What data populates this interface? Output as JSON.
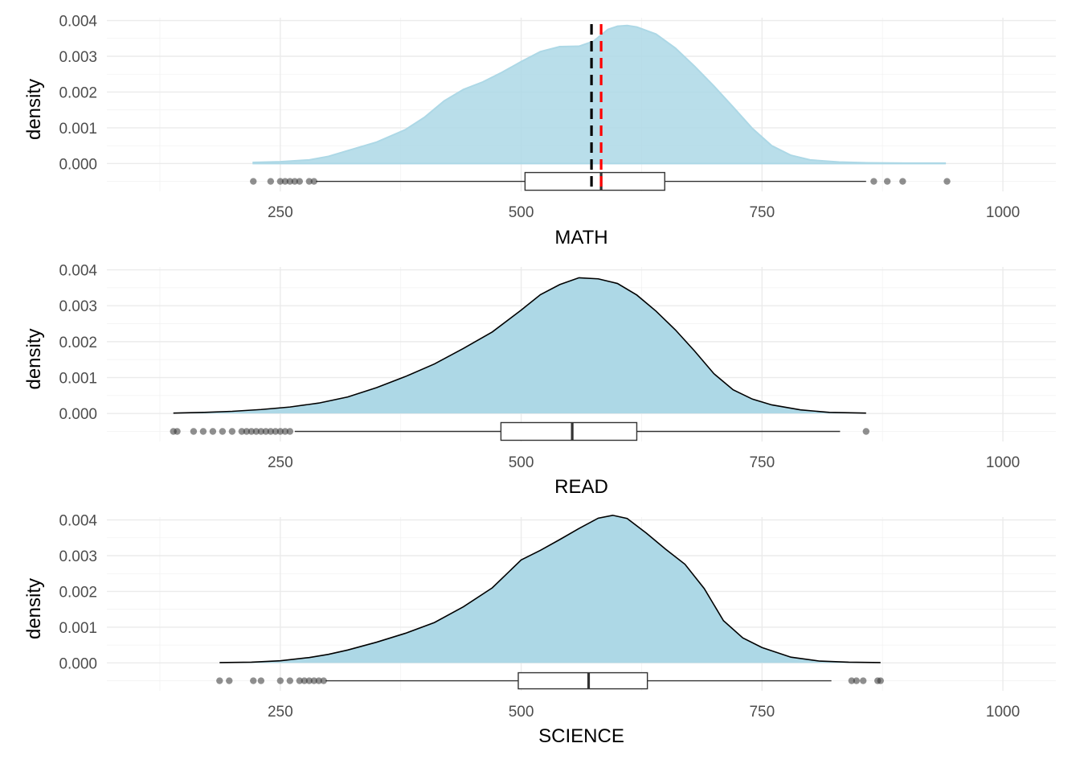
{
  "chart_data": [
    {
      "type": "density",
      "variable": "MATH",
      "xlabel": "MATH",
      "ylabel": "density",
      "xlim": [
        70,
        1055
      ],
      "ylim": [
        -0.00078,
        0.00408
      ],
      "x_ticks": [
        250,
        500,
        750,
        1000
      ],
      "x_tick_labels": [
        "250",
        "500",
        "750",
        "1000"
      ],
      "y_ticks": [
        0.0,
        0.001,
        0.002,
        0.003,
        0.004
      ],
      "y_tick_labels": [
        "0.000",
        "0.001",
        "0.002",
        "0.003",
        "0.004"
      ],
      "density_fill_color": "#add8e6",
      "density_outline": "none",
      "density": {
        "x": [
          222,
          250,
          280,
          300,
          320,
          350,
          380,
          400,
          420,
          440,
          460,
          480,
          500,
          520,
          540,
          560,
          575,
          590,
          600,
          610,
          620,
          640,
          660,
          680,
          700,
          720,
          740,
          760,
          780,
          800,
          830,
          860,
          900,
          940
        ],
        "y": [
          3e-05,
          5e-05,
          0.0001,
          0.0002,
          0.00036,
          0.0006,
          0.00095,
          0.0013,
          0.00175,
          0.00207,
          0.00228,
          0.00255,
          0.00285,
          0.00313,
          0.00327,
          0.00328,
          0.00342,
          0.00375,
          0.00384,
          0.00386,
          0.00382,
          0.00362,
          0.00323,
          0.00272,
          0.00217,
          0.00158,
          0.00098,
          0.0005,
          0.00023,
          0.0001,
          4e-05,
          2e-05,
          1e-05,
          1e-05
        ]
      },
      "boxplot": {
        "min": 287,
        "q1": 504,
        "median": 583,
        "q3": 649,
        "max": 858
      },
      "outliers": [
        222,
        240,
        250,
        255,
        260,
        265,
        270,
        280,
        285,
        866,
        880,
        896,
        942
      ],
      "reference_lines": [
        {
          "value": 573,
          "color": "#000000",
          "style": "dashed"
        },
        {
          "value": 583,
          "color": "#ff0000",
          "style": "dashed"
        }
      ]
    },
    {
      "type": "density",
      "variable": "READ",
      "xlabel": "READ",
      "ylabel": "density",
      "xlim": [
        70,
        1055
      ],
      "ylim": [
        -0.00078,
        0.00408
      ],
      "x_ticks": [
        250,
        500,
        750,
        1000
      ],
      "x_tick_labels": [
        "250",
        "500",
        "750",
        "1000"
      ],
      "y_ticks": [
        0.0,
        0.001,
        0.002,
        0.003,
        0.004
      ],
      "y_tick_labels": [
        "0.000",
        "0.001",
        "0.002",
        "0.003",
        "0.004"
      ],
      "density_fill_color": "#add8e6",
      "density_outline": "#000000",
      "density": {
        "x": [
          139,
          170,
          200,
          230,
          260,
          290,
          320,
          350,
          380,
          410,
          440,
          470,
          500,
          520,
          540,
          560,
          580,
          600,
          620,
          640,
          660,
          680,
          700,
          720,
          740,
          760,
          790,
          820,
          858
        ],
        "y": [
          1e-05,
          3e-05,
          6e-05,
          0.00011,
          0.00018,
          0.00029,
          0.00046,
          0.00072,
          0.00103,
          0.00138,
          0.00181,
          0.00227,
          0.00288,
          0.00331,
          0.00359,
          0.00378,
          0.00375,
          0.00362,
          0.0033,
          0.00285,
          0.00233,
          0.00174,
          0.00111,
          0.00066,
          0.0004,
          0.00024,
          0.0001,
          3e-05,
          1e-05
        ]
      },
      "boxplot": {
        "min": 265,
        "q1": 479,
        "median": 553,
        "q3": 620,
        "max": 831
      },
      "outliers": [
        139,
        143,
        160,
        170,
        180,
        190,
        200,
        210,
        215,
        220,
        225,
        230,
        235,
        240,
        245,
        250,
        255,
        260,
        858
      ]
    },
    {
      "type": "density",
      "variable": "SCIENCE",
      "xlabel": "SCIENCE",
      "ylabel": "density",
      "xlim": [
        70,
        1055
      ],
      "ylim": [
        -0.00078,
        0.00408
      ],
      "x_ticks": [
        250,
        500,
        750,
        1000
      ],
      "x_tick_labels": [
        "250",
        "500",
        "750",
        "1000"
      ],
      "y_ticks": [
        0.0,
        0.001,
        0.002,
        0.003,
        0.004
      ],
      "y_tick_labels": [
        "0.000",
        "0.001",
        "0.002",
        "0.003",
        "0.004"
      ],
      "density_fill_color": "#add8e6",
      "density_outline": "#000000",
      "density": {
        "x": [
          187,
          220,
          250,
          280,
          300,
          320,
          350,
          380,
          410,
          440,
          470,
          500,
          520,
          540,
          560,
          580,
          595,
          610,
          630,
          650,
          670,
          690,
          710,
          730,
          750,
          780,
          810,
          840,
          873
        ],
        "y": [
          1e-05,
          2e-05,
          6e-05,
          0.00015,
          0.00024,
          0.00036,
          0.00058,
          0.00083,
          0.00113,
          0.00157,
          0.0021,
          0.00288,
          0.00315,
          0.00345,
          0.00376,
          0.00405,
          0.00413,
          0.00404,
          0.00363,
          0.00318,
          0.00276,
          0.00208,
          0.00118,
          0.0007,
          0.00043,
          0.00016,
          5e-05,
          2e-05,
          1e-05
        ]
      },
      "boxplot": {
        "min": 297,
        "q1": 497,
        "median": 570,
        "q3": 631,
        "max": 822
      },
      "outliers": [
        187,
        197,
        222,
        230,
        250,
        260,
        270,
        275,
        280,
        285,
        290,
        295,
        843,
        848,
        855,
        870,
        873
      ]
    }
  ]
}
